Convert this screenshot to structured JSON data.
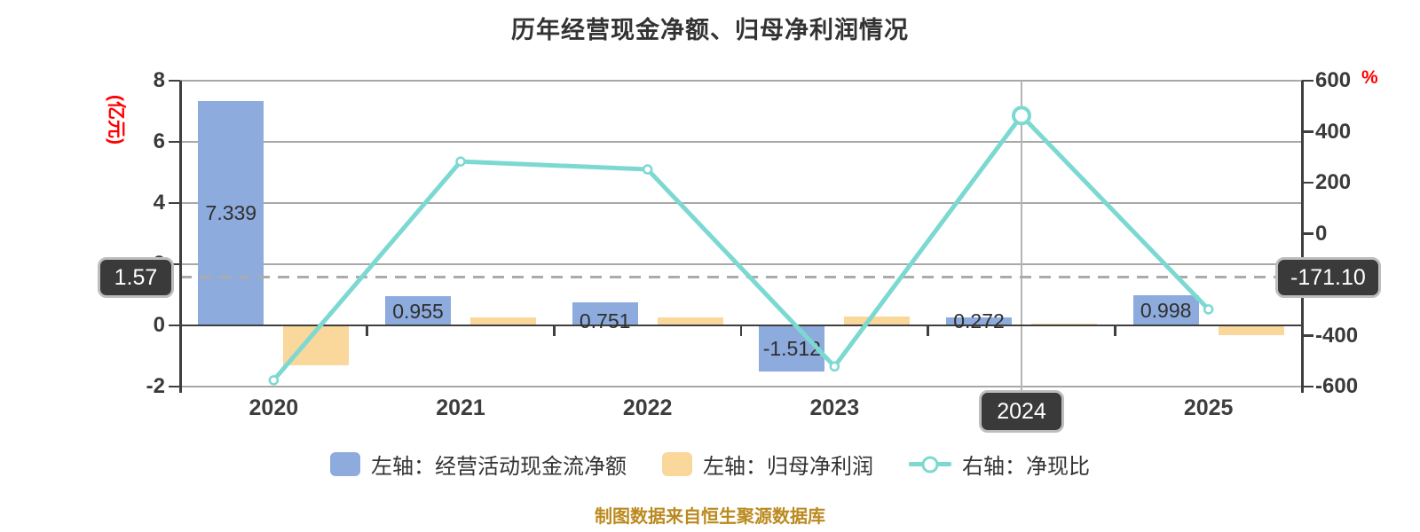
{
  "title": "历年经营现金净额、归母净利润情况",
  "footer_note": "制图数据来自恒生聚源数据库",
  "highlight_year": "2024",
  "left_axis": {
    "unit": "(亿元)",
    "tick_labels": [
      "8",
      "6",
      "4",
      "2",
      "0",
      "-2"
    ]
  },
  "right_axis": {
    "unit": "%",
    "tick_labels": [
      "600",
      "400",
      "200",
      "0",
      "-200",
      "-400",
      "-600"
    ]
  },
  "reference_line": {
    "left_label": "1.57",
    "right_label": "-171.10"
  },
  "colors": {
    "title_text": "#333333",
    "axis": "#3F3F3F",
    "grid": "#A8A8A8",
    "dashed": "#ABABAB",
    "tick_text": "#3A3A3A",
    "unit_red": "#FF0000",
    "footer": "#BB8A1F",
    "callout_bg": "#3A3A3A",
    "callout_border": "#BDBDBD",
    "callout_text": "#FFFFFF",
    "highlight_line": "#B5B5B5",
    "background": "#FFFFFF"
  },
  "chart_data": {
    "type": "bar+line",
    "categories": [
      "2020",
      "2021",
      "2022",
      "2023",
      "2024",
      "2025"
    ],
    "series": [
      {
        "name": "左轴：经营活动现金流净额",
        "type": "bar",
        "axis": "left",
        "color": "#8DABDC",
        "values": [
          7.339,
          0.955,
          0.751,
          -1.512,
          0.272,
          0.998
        ],
        "value_labels": [
          "7.339",
          "0.955",
          "0.751",
          "-1.512",
          "0.272",
          "0.998"
        ]
      },
      {
        "name": "左轴：归母净利润",
        "type": "bar",
        "axis": "left",
        "color": "#FAD79A",
        "values": [
          -1.31,
          0.27,
          0.27,
          0.3,
          0.07,
          -0.33
        ]
      },
      {
        "name": "右轴：净现比",
        "type": "line",
        "axis": "right",
        "color": "#7CD9D1",
        "marker": "circle",
        "values": [
          -575,
          283,
          252,
          -521,
          463,
          -297
        ]
      }
    ],
    "left_ylim": [
      -2,
      8
    ],
    "right_ylim": [
      -600,
      600
    ],
    "grid": true,
    "legend_position": "bottom"
  }
}
